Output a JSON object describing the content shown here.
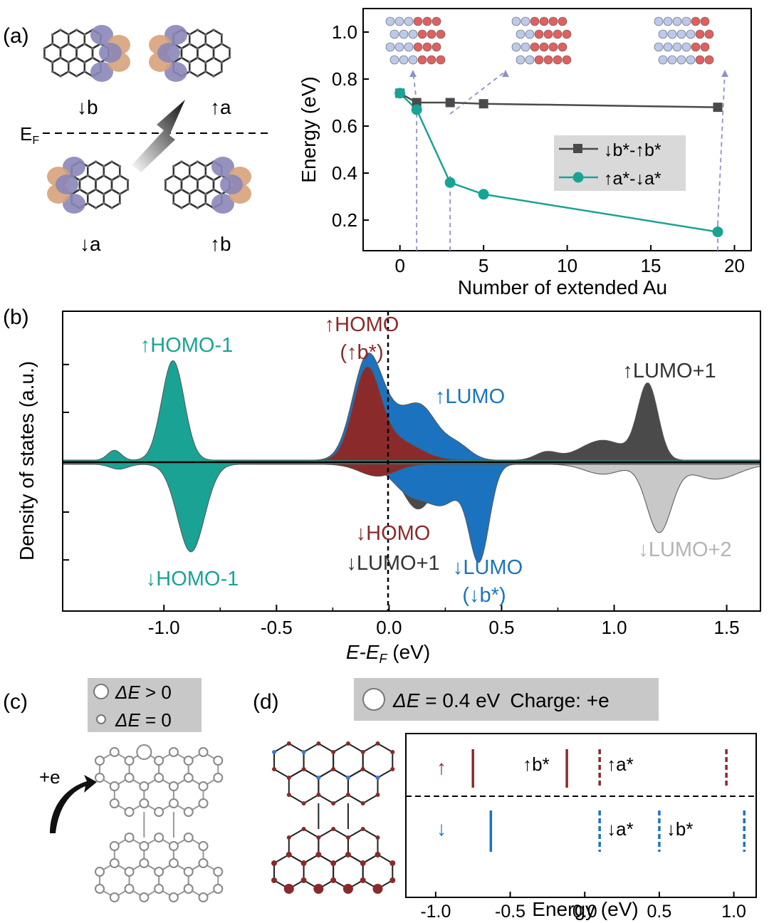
{
  "panel_labels": {
    "a": "(a)",
    "b": "(b)",
    "c": "(c)",
    "d": "(d)"
  },
  "colors": {
    "teal": "#1aa394",
    "dark": "#4a4a4a",
    "red": "#8b2a2a",
    "blue": "#1b73c0",
    "lightgray": "#c8c8c8",
    "orb_orange": "#d7a27a",
    "orb_purple": "#8a86b8",
    "legend_bg": "#d9d9d9"
  },
  "panel_a_orbitals": {
    "labels": {
      "down_b": "↓b",
      "up_a": "↑a",
      "down_a": "↓a",
      "up_b": "↑b"
    },
    "fermi_label": "E",
    "fermi_subscript": "F"
  },
  "chart_data": [
    {
      "id": "a_right",
      "type": "line",
      "xlabel": "Number of extended Au",
      "ylabel": "Energy (eV)",
      "xlim": [
        -2.2,
        21
      ],
      "ylim": [
        0.07,
        1.1
      ],
      "xticks": [
        0,
        5,
        10,
        15,
        20
      ],
      "yticks": [
        0.2,
        0.4,
        0.6,
        0.8,
        1.0
      ],
      "xtick_labels": [
        "0",
        "5",
        "10",
        "15",
        "20"
      ],
      "ytick_labels": [
        "0.2",
        "0.4",
        "0.6",
        "0.8",
        "1.0"
      ],
      "legend_position": "center-right",
      "series": [
        {
          "name": "↓b*-↑b*",
          "marker": "square",
          "x": [
            0,
            1,
            3,
            5,
            19
          ],
          "y": [
            0.74,
            0.7,
            0.7,
            0.695,
            0.68
          ]
        },
        {
          "name": "↑a*-↓a*",
          "marker": "circle",
          "x": [
            0,
            1,
            3,
            5,
            19
          ],
          "y": [
            0.74,
            0.67,
            0.36,
            0.31,
            0.15
          ]
        }
      ],
      "insets_at_x": [
        1,
        3,
        19
      ]
    },
    {
      "id": "b",
      "type": "area",
      "xlabel_main": "E-E",
      "xlabel_sub": "F",
      "xlabel_unit": " (eV)",
      "ylabel": "Density of states (a.u.)",
      "xlim": [
        -1.45,
        1.65
      ],
      "ylim": [
        -1.05,
        1.05
      ],
      "xticks": [
        -1.0,
        -0.5,
        0.0,
        0.5,
        1.0,
        1.5
      ],
      "xtick_labels": [
        "-1.0",
        "-0.5",
        "0.0",
        "0.5",
        "1.0",
        "1.5"
      ],
      "series": [
        {
          "name": "↑HOMO-1",
          "spin": "up",
          "peaks": [
            {
              "center": -0.96,
              "height": 1.0,
              "width": 0.05
            },
            {
              "center": -1.22,
              "height": 0.1,
              "width": 0.03
            }
          ]
        },
        {
          "name": "↑HOMO",
          "spin": "up",
          "peaks": [
            {
              "center": -0.1,
              "height": 0.85,
              "width": 0.06
            },
            {
              "center": 0.03,
              "height": 0.2,
              "width": 0.1
            }
          ]
        },
        {
          "name": "↑LUMO",
          "spin": "up",
          "peaks": [
            {
              "center": -0.1,
              "height": 0.95,
              "width": 0.065
            },
            {
              "center": 0.15,
              "height": 0.45,
              "width": 0.07
            },
            {
              "center": 0.02,
              "height": 0.35,
              "width": 0.08
            },
            {
              "center": 0.3,
              "height": 0.15,
              "width": 0.06
            }
          ]
        },
        {
          "name": "↑LUMO+1",
          "spin": "up",
          "peaks": [
            {
              "center": 1.15,
              "height": 0.75,
              "width": 0.045
            },
            {
              "center": 0.95,
              "height": 0.2,
              "width": 0.1
            },
            {
              "center": 0.7,
              "height": 0.08,
              "width": 0.05
            }
          ]
        },
        {
          "name": "↓HOMO-1",
          "spin": "down",
          "peaks": [
            {
              "center": -0.88,
              "height": 0.88,
              "width": 0.06
            },
            {
              "center": -1.2,
              "height": 0.05,
              "width": 0.04
            }
          ]
        },
        {
          "name": "↓HOMO",
          "spin": "down",
          "peaks": [
            {
              "center": -0.05,
              "height": 0.12,
              "width": 0.08
            }
          ]
        },
        {
          "name": "↓LUMO+1",
          "spin": "down",
          "peaks": [
            {
              "center": 0.13,
              "height": 0.45,
              "width": 0.07
            },
            {
              "center": 0.4,
              "height": 0.85,
              "width": 0.04
            }
          ]
        },
        {
          "name": "↓LUMO",
          "spin": "down",
          "peaks": [
            {
              "center": 0.4,
              "height": 0.95,
              "width": 0.045
            },
            {
              "center": 0.1,
              "height": 0.3,
              "width": 0.08
            },
            {
              "center": 0.25,
              "height": 0.35,
              "width": 0.07
            }
          ]
        },
        {
          "name": "↓LUMO+2",
          "spin": "down",
          "peaks": [
            {
              "center": 1.2,
              "height": 0.68,
              "width": 0.055
            },
            {
              "center": 1.45,
              "height": 0.15,
              "width": 0.1
            },
            {
              "center": 0.95,
              "height": 0.1,
              "width": 0.08
            }
          ]
        }
      ],
      "annotations": {
        "up_homo1": "↑HOMO-1",
        "up_homo": "↑HOMO",
        "up_homo_sub": "(↑b*)",
        "up_lumo": "↑LUMO",
        "up_lumo1": "↑LUMO+1",
        "down_homo1": "↓HOMO-1",
        "down_homo": "↓HOMO",
        "down_lumo1": "↓LUMO+1",
        "down_lumo": "↓LUMO",
        "down_lumo_sub": "(↓b*)",
        "down_lumo2": "↓LUMO+2"
      }
    },
    {
      "id": "d_right",
      "type": "scatter",
      "xlabel": "Energy (eV)",
      "xlim": [
        -1.2,
        1.15
      ],
      "xticks": [
        -1.0,
        -0.5,
        0.0,
        0.5,
        1.0
      ],
      "xtick_labels": [
        "-1.0",
        "-0.5",
        "0.0",
        "0.5",
        "1.0"
      ],
      "spin_up_label": "↑",
      "spin_down_label": "↓",
      "levels_up": [
        {
          "energy": -0.75,
          "style": "solid"
        },
        {
          "energy": -0.12,
          "style": "solid",
          "label": "↑b*"
        },
        {
          "energy": 0.1,
          "style": "dashed",
          "label": "↑a*"
        },
        {
          "energy": 0.95,
          "style": "dashed"
        }
      ],
      "levels_down": [
        {
          "energy": -0.63,
          "style": "solid"
        },
        {
          "energy": 0.1,
          "style": "dashed",
          "label": "↓a*"
        },
        {
          "energy": 0.5,
          "style": "dashed",
          "label": "↓b*"
        },
        {
          "energy": 1.07,
          "style": "dashed"
        }
      ]
    }
  ],
  "panel_c": {
    "legend_gt_label": "ΔE",
    "legend_gt_suffix": " > 0",
    "legend_eq_label": "ΔE",
    "legend_eq_suffix": " = 0",
    "charge_label": "+e"
  },
  "panel_d": {
    "banner_label": "ΔE",
    "banner_value": " = 0.4 eV",
    "banner_charge": "Charge: +e"
  }
}
